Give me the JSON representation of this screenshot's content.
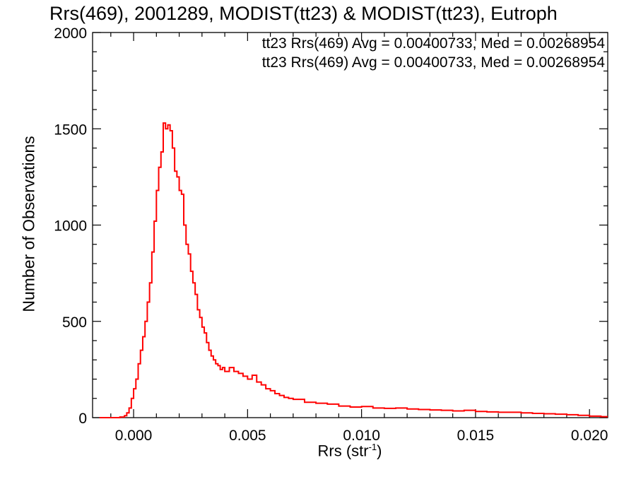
{
  "chart_data": {
    "type": "line",
    "title": "Rrs(469), 2001289, MODIST(tt23) & MODIST(tt23), Eutroph",
    "xlabel": {
      "base": "Rrs (str",
      "sup": "-1",
      "close": ")"
    },
    "ylabel": "Number of Observations",
    "xlim": [
      -0.0018,
      0.0208
    ],
    "ylim": [
      0,
      2000
    ],
    "x_ticks": [
      0.0,
      0.005,
      0.01,
      0.015,
      0.02
    ],
    "x_tick_labels": [
      "0.000",
      "0.005",
      "0.010",
      "0.015",
      "0.020"
    ],
    "y_ticks": [
      0,
      500,
      1000,
      1500,
      2000
    ],
    "y_tick_labels": [
      "0",
      "500",
      "1000",
      "1500",
      "2000"
    ],
    "legend_placement": "top-right",
    "legend": [
      {
        "text": "tt23 Rrs(469) Avg = 0.00400733, Med = 0.00268954",
        "color": "#000000"
      },
      {
        "text": "tt23 Rrs(469) Avg = 0.00400733, Med = 0.00268954",
        "color": "#ff0000"
      }
    ],
    "series": [
      {
        "color": "#ff0000",
        "style": "step",
        "x": [
          -0.0015,
          -0.001,
          -0.0006,
          -0.0004,
          -0.0003,
          -0.0002,
          -0.0001,
          0.0,
          0.0001,
          0.0002,
          0.0003,
          0.0004,
          0.0005,
          0.0006,
          0.0007,
          0.0008,
          0.0009,
          0.001,
          0.0011,
          0.0012,
          0.0013,
          0.0014,
          0.0015,
          0.0016,
          0.0017,
          0.0018,
          0.0019,
          0.002,
          0.0021,
          0.0022,
          0.0023,
          0.0024,
          0.0025,
          0.0026,
          0.0027,
          0.0028,
          0.0029,
          0.003,
          0.0031,
          0.0032,
          0.0033,
          0.0034,
          0.0035,
          0.0036,
          0.0037,
          0.0038,
          0.0039,
          0.004,
          0.0042,
          0.0044,
          0.0046,
          0.0048,
          0.005,
          0.0052,
          0.0054,
          0.0056,
          0.0058,
          0.006,
          0.0062,
          0.0064,
          0.0066,
          0.0068,
          0.007,
          0.0075,
          0.008,
          0.0085,
          0.009,
          0.0095,
          0.01,
          0.0105,
          0.011,
          0.0115,
          0.012,
          0.0125,
          0.013,
          0.0135,
          0.014,
          0.0145,
          0.015,
          0.0155,
          0.016,
          0.0165,
          0.017,
          0.0175,
          0.018,
          0.0185,
          0.019,
          0.0195,
          0.02,
          0.0205
        ],
        "y": [
          0,
          0,
          3,
          10,
          25,
          50,
          100,
          150,
          200,
          280,
          350,
          420,
          500,
          600,
          700,
          860,
          1020,
          1180,
          1300,
          1380,
          1530,
          1500,
          1520,
          1490,
          1400,
          1280,
          1250,
          1180,
          1160,
          1000,
          900,
          850,
          760,
          700,
          640,
          560,
          520,
          470,
          440,
          390,
          350,
          320,
          300,
          280,
          270,
          250,
          260,
          240,
          260,
          240,
          230,
          215,
          200,
          220,
          185,
          170,
          150,
          140,
          125,
          115,
          105,
          100,
          95,
          80,
          75,
          70,
          60,
          55,
          58,
          50,
          48,
          50,
          45,
          42,
          40,
          38,
          35,
          38,
          32,
          30,
          28,
          28,
          25,
          22,
          20,
          18,
          15,
          12,
          8,
          5
        ],
        "plot_until": 0.0208
      }
    ]
  }
}
